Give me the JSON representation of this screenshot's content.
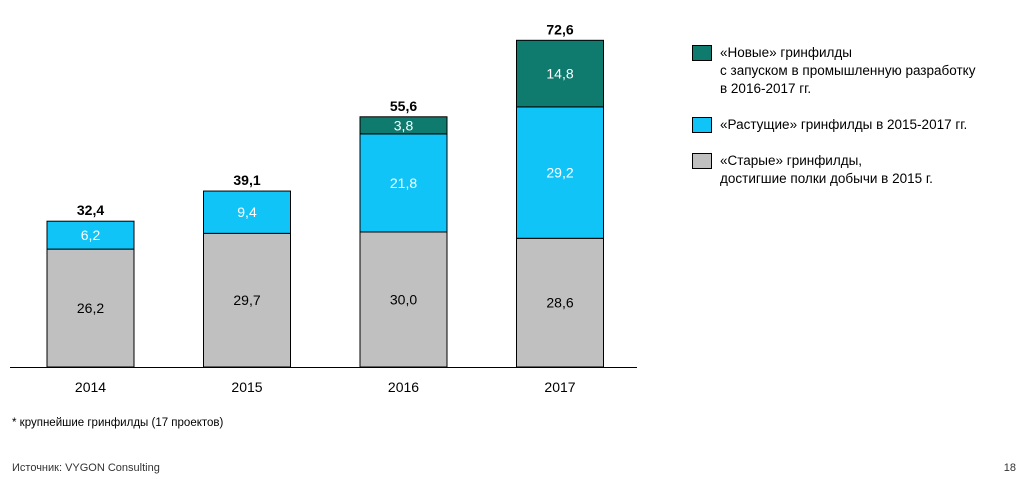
{
  "chart_data": {
    "type": "bar",
    "stacked": true,
    "categories": [
      "2014",
      "2015",
      "2016",
      "2017"
    ],
    "series": [
      {
        "name": "«Старые» гринфилды,\nдостигшие полки добычи в 2015 г.",
        "color": "#c0c0c0",
        "text_color": "#000000",
        "values": [
          26.2,
          29.7,
          30.0,
          28.6
        ],
        "labels": [
          "26,2",
          "29,7",
          "30,0",
          "28,6"
        ]
      },
      {
        "name": "«Растущие» гринфилды в 2015-2017 гг.",
        "color": "#10c4f7",
        "text_color": "#ffffff",
        "values": [
          6.2,
          9.4,
          21.8,
          29.2
        ],
        "labels": [
          "6,2",
          "9,4",
          "21,8",
          "29,2"
        ]
      },
      {
        "name": "«Новые» гринфилды\nс запуском в промышленную разработку\nв 2016-2017 гг.",
        "color": "#0f7a6e",
        "text_color": "#ffffff",
        "values": [
          0,
          0,
          3.8,
          14.8
        ],
        "labels": [
          "",
          "",
          "3,8",
          "14,8"
        ]
      }
    ],
    "totals": [
      32.4,
      39.1,
      55.6,
      72.6
    ],
    "total_labels": [
      "32,4",
      "39,1",
      "55,6",
      "72,6"
    ],
    "ylim": [
      0,
      75
    ],
    "grid": false,
    "legend_position": "right",
    "xlabel": "",
    "ylabel": ""
  },
  "legend_order": [
    2,
    1,
    0
  ],
  "footnote": "* крупнейшие гринфилды (17 проектов)",
  "source": "Источник: VYGON Consulting",
  "page_number": "18"
}
